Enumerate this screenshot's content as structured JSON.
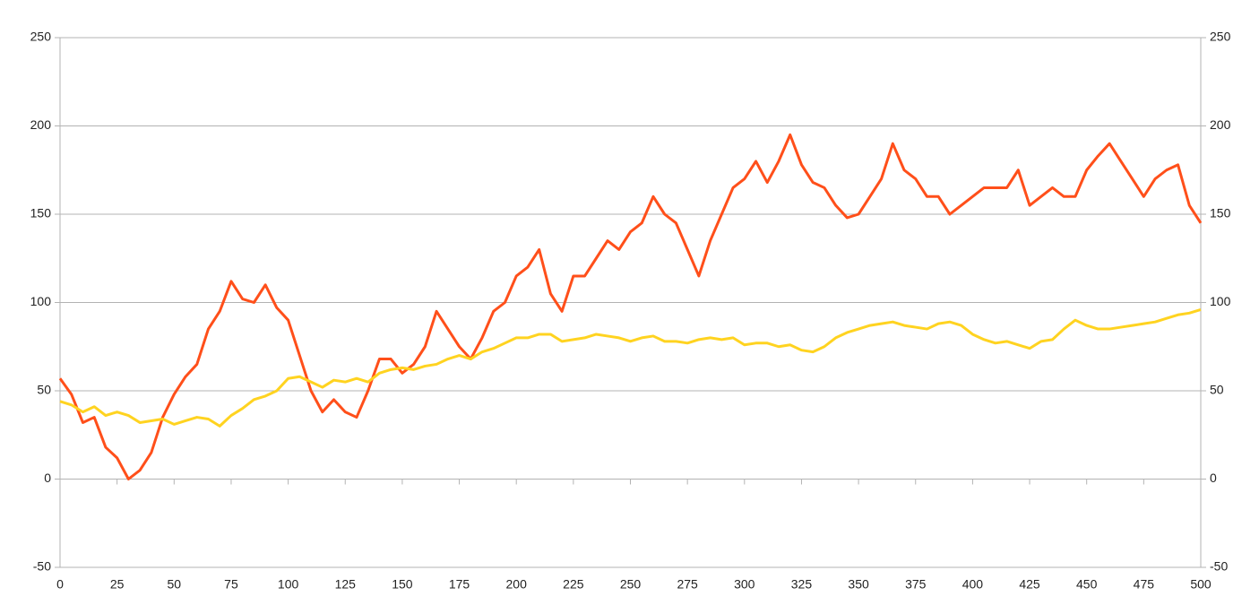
{
  "chart_data": {
    "type": "line",
    "x": [
      0,
      5,
      10,
      15,
      20,
      25,
      30,
      35,
      40,
      45,
      50,
      55,
      60,
      65,
      70,
      75,
      80,
      85,
      90,
      95,
      100,
      105,
      110,
      115,
      120,
      125,
      130,
      135,
      140,
      145,
      150,
      155,
      160,
      165,
      170,
      175,
      180,
      185,
      190,
      195,
      200,
      205,
      210,
      215,
      220,
      225,
      230,
      235,
      240,
      245,
      250,
      255,
      260,
      265,
      270,
      275,
      280,
      285,
      290,
      295,
      300,
      305,
      310,
      315,
      320,
      325,
      330,
      335,
      340,
      345,
      350,
      355,
      360,
      365,
      370,
      375,
      380,
      385,
      390,
      395,
      400,
      405,
      410,
      415,
      420,
      425,
      430,
      435,
      440,
      445,
      450,
      455,
      460,
      465,
      470,
      475,
      480,
      485,
      490,
      495,
      500
    ],
    "series": [
      {
        "color": "#ff4f1a",
        "values": [
          57,
          48,
          32,
          35,
          18,
          12,
          0,
          5,
          15,
          35,
          48,
          58,
          65,
          85,
          95,
          112,
          102,
          100,
          110,
          97,
          90,
          70,
          50,
          38,
          45,
          38,
          35,
          50,
          68,
          68,
          60,
          65,
          75,
          95,
          85,
          75,
          68,
          80,
          95,
          100,
          115,
          120,
          130,
          105,
          95,
          115,
          115,
          125,
          135,
          130,
          140,
          145,
          160,
          150,
          145,
          130,
          115,
          135,
          150,
          165,
          170,
          180,
          168,
          180,
          195,
          178,
          168,
          165,
          155,
          148,
          150,
          160,
          170,
          190,
          175,
          170,
          160,
          160,
          150,
          155,
          160,
          165,
          165,
          165,
          175,
          155,
          160,
          165,
          160,
          160,
          175,
          183,
          190,
          180,
          170,
          160,
          170,
          175,
          178,
          155,
          145
        ]
      },
      {
        "color": "#ffd320",
        "values": [
          44,
          42,
          38,
          41,
          36,
          38,
          36,
          32,
          33,
          34,
          31,
          33,
          35,
          34,
          30,
          36,
          40,
          45,
          47,
          50,
          57,
          58,
          55,
          52,
          56,
          55,
          57,
          55,
          60,
          62,
          63,
          62,
          64,
          65,
          68,
          70,
          68,
          72,
          74,
          77,
          80,
          80,
          82,
          82,
          78,
          79,
          80,
          82,
          81,
          80,
          78,
          80,
          81,
          78,
          78,
          77,
          79,
          80,
          79,
          80,
          76,
          77,
          77,
          75,
          76,
          73,
          72,
          75,
          80,
          83,
          85,
          87,
          88,
          89,
          87,
          86,
          85,
          88,
          89,
          87,
          82,
          79,
          77,
          78,
          76,
          74,
          78,
          79,
          85,
          90,
          87,
          85,
          85,
          86,
          87,
          88,
          89,
          91,
          93,
          94,
          96
        ]
      }
    ],
    "xlim": [
      0,
      500
    ],
    "xticks": [
      0,
      25,
      50,
      75,
      100,
      125,
      150,
      175,
      200,
      225,
      250,
      275,
      300,
      325,
      350,
      375,
      400,
      425,
      450,
      475,
      500
    ],
    "ylim": [
      -50,
      250
    ],
    "yticks": [
      -50,
      0,
      50,
      100,
      150,
      200,
      250
    ],
    "y2lim": [
      -50,
      250
    ],
    "y2ticks": [
      -50,
      0,
      50,
      100,
      150,
      200,
      250
    ],
    "grid": true
  }
}
